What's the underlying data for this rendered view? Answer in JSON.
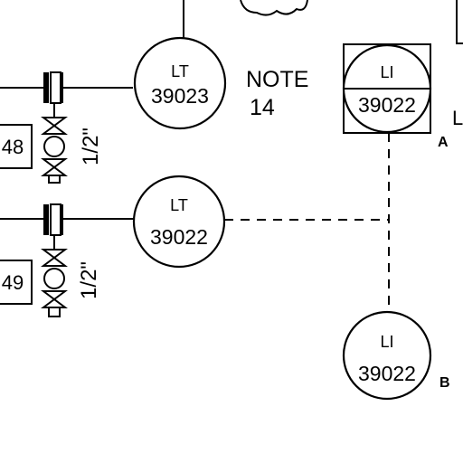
{
  "instruments": {
    "lt_upper": {
      "function": "LT",
      "tag": "39023"
    },
    "lt_lower": {
      "function": "LT",
      "tag": "39022"
    },
    "li_a": {
      "function": "LI",
      "tag": "39022",
      "suffix": "A"
    },
    "li_b": {
      "function": "LI",
      "tag": "39022",
      "suffix": "B"
    }
  },
  "note": {
    "word": "NOTE",
    "number": "14"
  },
  "valves": {
    "upper_size": "1/2\"",
    "lower_size": "1/2\""
  },
  "tag_boxes": {
    "upper": "48",
    "lower": "49"
  },
  "edge_glyphs": {
    "right_letter": "L"
  }
}
